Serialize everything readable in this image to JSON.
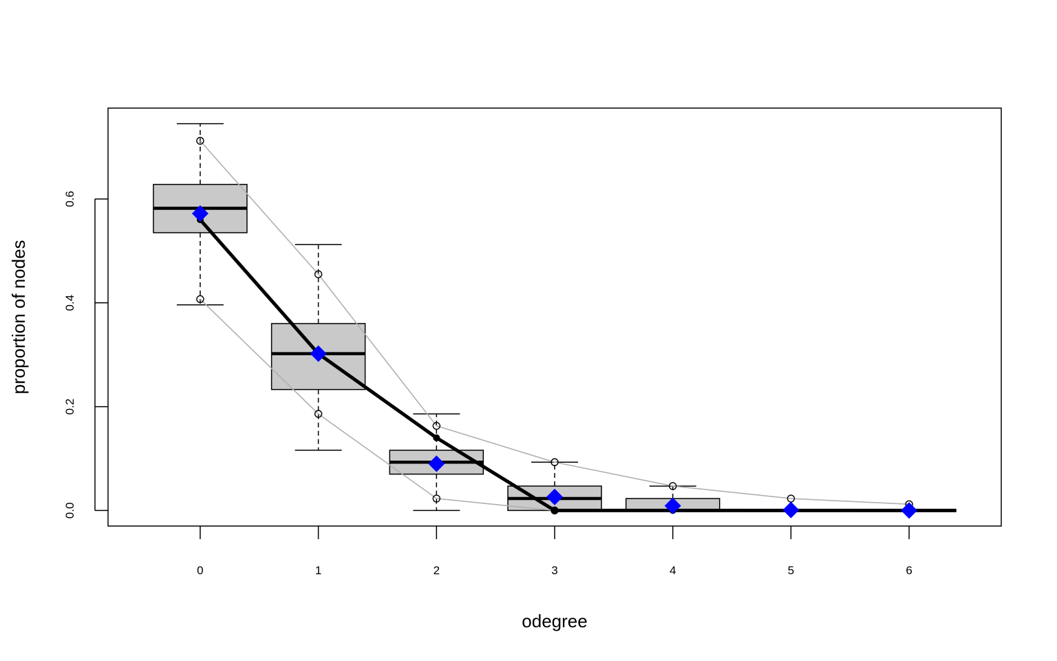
{
  "chart_data": {
    "type": "box",
    "title": "",
    "xlabel": "odegree",
    "ylabel": "proportion of nodes",
    "categories": [
      "0",
      "1",
      "2",
      "3",
      "4",
      "5",
      "6"
    ],
    "x": [
      0,
      1,
      2,
      3,
      4,
      5,
      6
    ],
    "xlim": [
      -0.78,
      6.78
    ],
    "ylim": [
      -0.03,
      0.775
    ],
    "y_ticks": [
      0.0,
      0.2,
      0.4,
      0.6
    ],
    "y_tick_labels": [
      "0.0",
      "0.2",
      "0.4",
      "0.6"
    ],
    "grid": false,
    "boxes": [
      {
        "x": 0,
        "whisker_low": 0.396,
        "q1": 0.535,
        "median": 0.582,
        "q3": 0.628,
        "whisker_high": 0.745
      },
      {
        "x": 1,
        "whisker_low": 0.116,
        "q1": 0.233,
        "median": 0.302,
        "q3": 0.36,
        "whisker_high": 0.512
      },
      {
        "x": 2,
        "whisker_low": 0.0,
        "q1": 0.07,
        "median": 0.093,
        "q3": 0.116,
        "whisker_high": 0.186
      },
      {
        "x": 3,
        "whisker_low": 0.0,
        "q1": 0.0,
        "median": 0.023,
        "q3": 0.047,
        "whisker_high": 0.093
      },
      {
        "x": 4,
        "whisker_low": 0.0,
        "q1": 0.0,
        "median": 0.0,
        "q3": 0.023,
        "whisker_high": 0.047
      },
      {
        "x": 5,
        "whisker_low": 0.0,
        "q1": 0.0,
        "median": 0.0,
        "q3": 0.0,
        "whisker_high": 0.0
      },
      {
        "x": 6,
        "whisker_low": 0.0,
        "q1": 0.0,
        "median": 0.0,
        "q3": 0.0,
        "whisker_high": 0.0
      }
    ],
    "series": [
      {
        "style": "bold-black-line-dots",
        "x": [
          0,
          1,
          2,
          3,
          4,
          5,
          6
        ],
        "values": [
          0.56,
          0.302,
          0.14,
          0.0,
          0.0,
          0.0,
          0.0
        ],
        "extend_to": 6.4
      },
      {
        "style": "grey-line-open-circles",
        "x": [
          0,
          1,
          2,
          3,
          4,
          5,
          6
        ],
        "values": [
          0.712,
          0.455,
          0.163,
          0.093,
          0.047,
          0.023,
          0.012
        ]
      },
      {
        "style": "grey-line-open-circles",
        "x": [
          0,
          1,
          2,
          3
        ],
        "values": [
          0.407,
          0.186,
          0.023,
          0.0
        ]
      },
      {
        "style": "blue-diamonds",
        "x": [
          0,
          1,
          2,
          3,
          4,
          5,
          6
        ],
        "values": [
          0.572,
          0.302,
          0.09,
          0.026,
          0.009,
          0.001,
          0.0
        ]
      }
    ],
    "colors": {
      "box_fill": "#c9c9c9",
      "grey_line": "#b0b0b0",
      "diamond": "#0000ff",
      "main_line": "#000000"
    }
  }
}
